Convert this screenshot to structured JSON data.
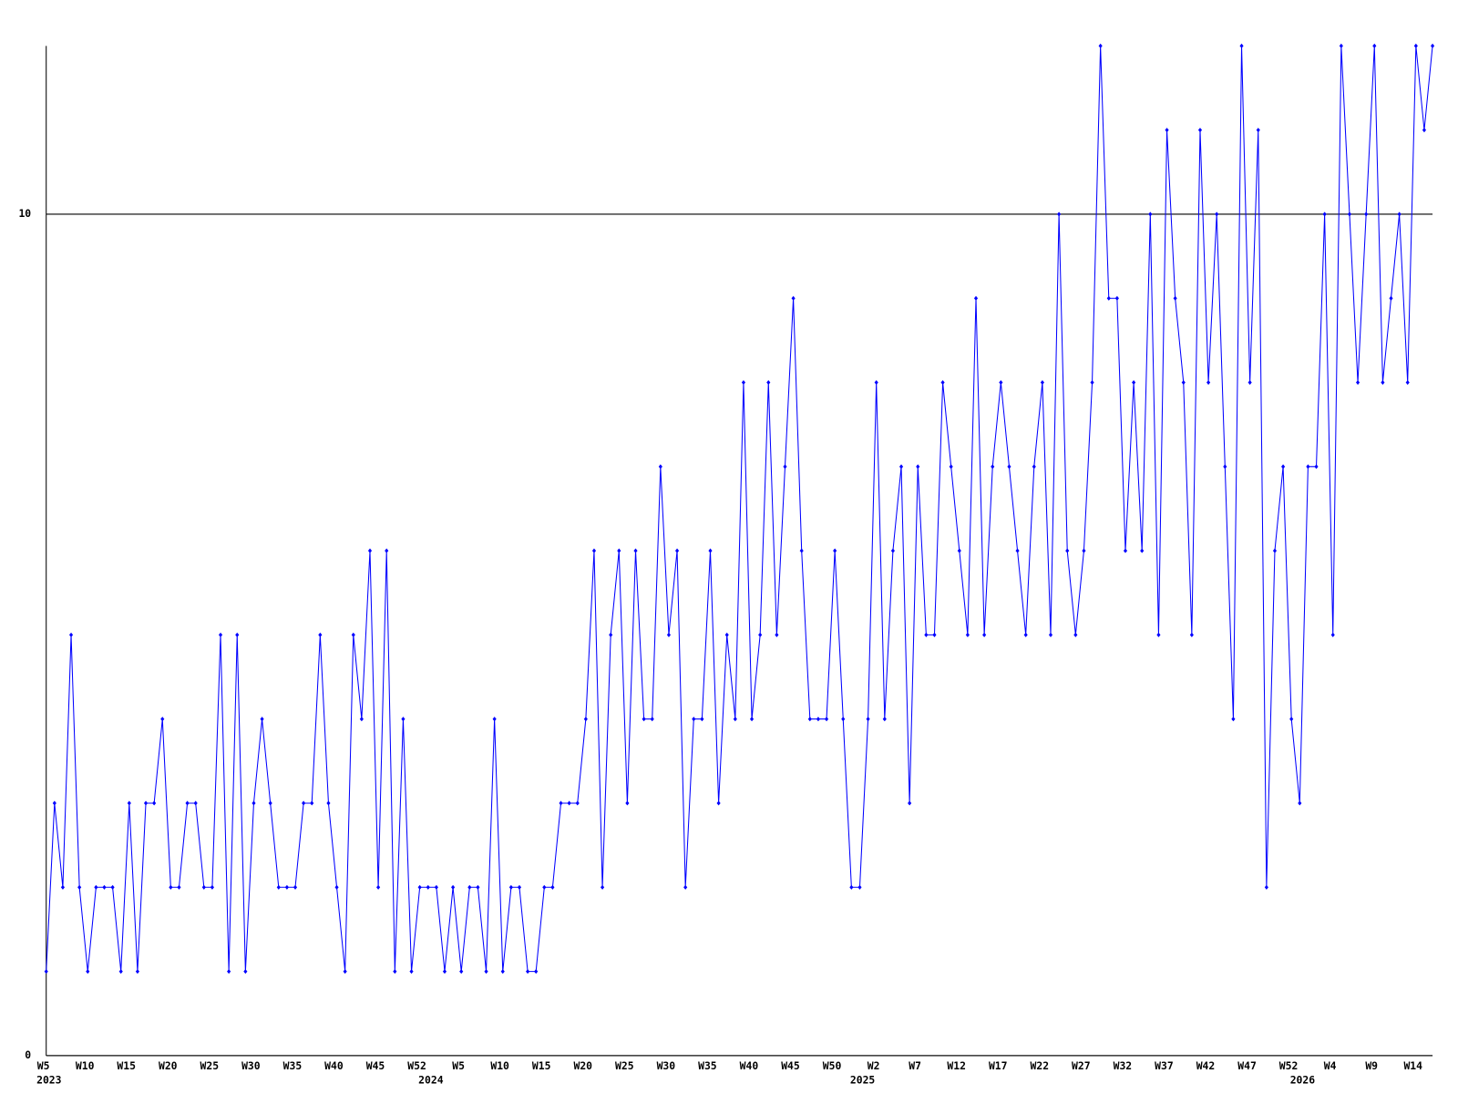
{
  "chart_data": {
    "type": "line",
    "categories": [
      "W5",
      null,
      null,
      null,
      null,
      "W10",
      null,
      null,
      null,
      null,
      "W15",
      null,
      null,
      null,
      null,
      "W20",
      null,
      null,
      null,
      null,
      "W25",
      null,
      null,
      null,
      null,
      "W30",
      null,
      null,
      null,
      null,
      "W35",
      null,
      null,
      null,
      null,
      "W40",
      null,
      null,
      null,
      null,
      "W45",
      null,
      null,
      null,
      null,
      "W52",
      null,
      null,
      null,
      null,
      "W5",
      null,
      null,
      null,
      null,
      "W10",
      null,
      null,
      null,
      null,
      "W15",
      null,
      null,
      null,
      null,
      "W20",
      null,
      null,
      null,
      null,
      "W25",
      null,
      null,
      null,
      null,
      "W30",
      null,
      null,
      null,
      null,
      "W35",
      null,
      null,
      null,
      null,
      "W40",
      null,
      null,
      null,
      null,
      "W45",
      null,
      null,
      null,
      null,
      "W50",
      null,
      null,
      null,
      null,
      "W2",
      null,
      null,
      null,
      null,
      "W7",
      null,
      null,
      null,
      null,
      "W12",
      null,
      null,
      null,
      null,
      "W17",
      null,
      null,
      null,
      null,
      "W22",
      null,
      null,
      null,
      null,
      "W27",
      null,
      null,
      null,
      null,
      "W32",
      null,
      null,
      null,
      null,
      "W37",
      null,
      null,
      null,
      null,
      "W42",
      null,
      null,
      null,
      null,
      "W47",
      null,
      null,
      null,
      null,
      "W52",
      null,
      null,
      null,
      null,
      "W4",
      null,
      null,
      null,
      null,
      "W9",
      null,
      null,
      null,
      null,
      "W14",
      null,
      null
    ],
    "years": [
      "2023",
      null,
      null,
      null,
      null,
      null,
      null,
      null,
      null,
      null,
      null,
      null,
      null,
      null,
      null,
      null,
      null,
      null,
      null,
      null,
      null,
      null,
      null,
      null,
      null,
      null,
      null,
      null,
      null,
      null,
      null,
      null,
      null,
      null,
      null,
      null,
      null,
      null,
      null,
      null,
      null,
      null,
      null,
      null,
      null,
      null,
      "2024",
      null,
      null,
      null,
      null,
      null,
      null,
      null,
      null,
      null,
      null,
      null,
      null,
      null,
      null,
      null,
      null,
      null,
      null,
      null,
      null,
      null,
      null,
      null,
      null,
      null,
      null,
      null,
      null,
      null,
      null,
      null,
      null,
      null,
      null,
      null,
      null,
      null,
      null,
      null,
      null,
      null,
      null,
      null,
      null,
      null,
      null,
      null,
      null,
      null,
      null,
      null,
      "2025",
      null,
      null,
      null,
      null,
      null,
      null,
      null,
      null,
      null,
      null,
      null,
      null,
      null,
      null,
      null,
      null,
      null,
      null,
      null,
      null,
      null,
      null,
      null,
      null,
      null,
      null,
      null,
      null,
      null,
      null,
      null,
      null,
      null,
      null,
      null,
      null,
      null,
      null,
      null,
      null,
      null,
      null,
      null,
      null,
      null,
      null,
      null,
      null,
      null,
      null,
      null,
      null,
      "2026",
      null,
      null,
      null,
      null,
      null,
      null,
      null,
      null,
      null,
      null,
      null,
      null,
      null,
      null,
      null,
      null
    ],
    "values": [
      1,
      3,
      2,
      5,
      2,
      1,
      2,
      2,
      2,
      1,
      3,
      1,
      3,
      3,
      4,
      2,
      2,
      3,
      3,
      2,
      2,
      5,
      1,
      5,
      1,
      3,
      4,
      3,
      2,
      2,
      2,
      3,
      3,
      5,
      3,
      2,
      1,
      5,
      4,
      6,
      2,
      6,
      1,
      4,
      1,
      2,
      2,
      2,
      1,
      2,
      1,
      2,
      2,
      1,
      4,
      1,
      2,
      2,
      1,
      1,
      2,
      2,
      3,
      3,
      3,
      4,
      6,
      2,
      5,
      6,
      3,
      6,
      4,
      4,
      7,
      5,
      6,
      2,
      4,
      4,
      6,
      3,
      5,
      4,
      8,
      4,
      5,
      8,
      5,
      7,
      9,
      6,
      4,
      4,
      4,
      6,
      4,
      2,
      2,
      4,
      8,
      4,
      6,
      7,
      3,
      7,
      5,
      5,
      8,
      7,
      6,
      5,
      9,
      5,
      7,
      8,
      7,
      6,
      5,
      7,
      8,
      5,
      10,
      6,
      5,
      6,
      8,
      12,
      9,
      9,
      6,
      8,
      6,
      10,
      5,
      11,
      9,
      8,
      5,
      11,
      8,
      10,
      7,
      4,
      12,
      8,
      11,
      2,
      6,
      7,
      4,
      3,
      7,
      7,
      10,
      5,
      12,
      10,
      8,
      10,
      12,
      8,
      9,
      10,
      8,
      12,
      11,
      12
    ],
    "color": "#0000ff",
    "ylim": [
      0,
      12
    ],
    "yticks": [
      0,
      10
    ],
    "grid": true
  }
}
